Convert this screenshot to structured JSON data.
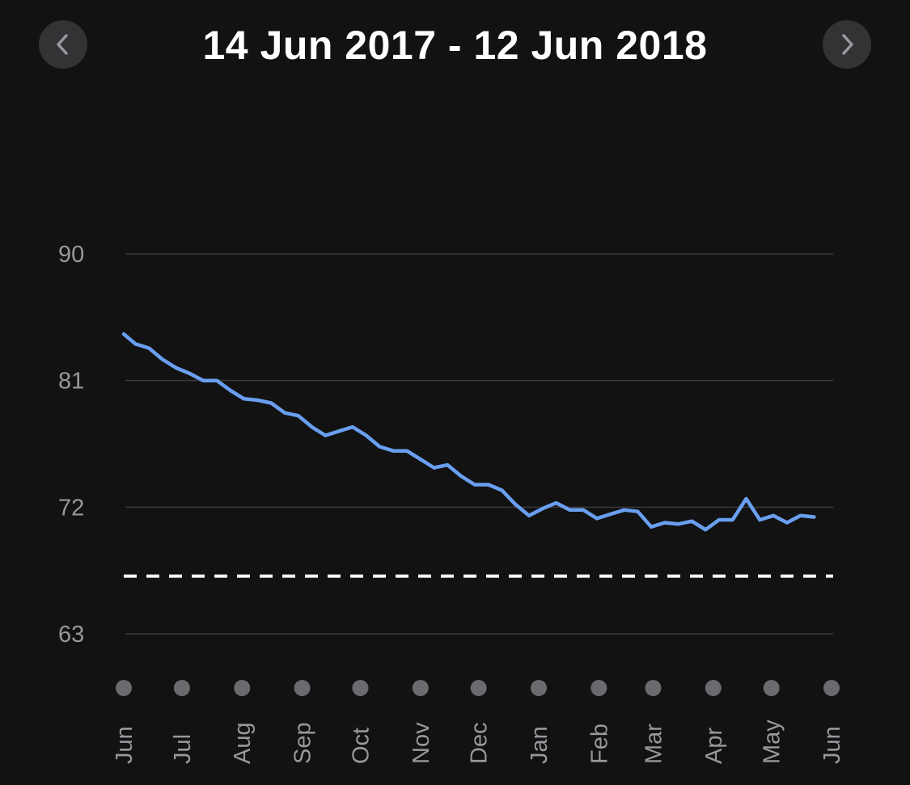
{
  "header": {
    "title": "14 Jun 2017 - 12 Jun 2018",
    "prev_icon": "chevron-left-icon",
    "next_icon": "chevron-right-icon"
  },
  "colors": {
    "background": "#121213",
    "line": "#6a9ff0",
    "goal_line": "#ffffff",
    "grid": "#3a3a3c",
    "dot": "#6b6b6f",
    "tick_text": "#98989d",
    "button": "#333336"
  },
  "chart_data": {
    "type": "line",
    "title": "14 Jun 2017 - 12 Jun 2018",
    "xlabel": "",
    "ylabel": "",
    "ylim": [
      63,
      90
    ],
    "y_ticks": [
      90,
      81,
      72,
      63
    ],
    "x_tick_labels": [
      "Jun",
      "Jul",
      "Aug",
      "Sep",
      "Oct",
      "Nov",
      "Dec",
      "Jan",
      "Feb",
      "Mar",
      "Apr",
      "May",
      "Jun"
    ],
    "x_tick_dates": [
      "2017-06-01",
      "2017-07-01",
      "2017-08-01",
      "2017-09-01",
      "2017-10-01",
      "2017-11-01",
      "2017-12-01",
      "2018-01-01",
      "2018-02-01",
      "2018-03-01",
      "2018-04-01",
      "2018-05-01",
      "2018-06-01"
    ],
    "grid": true,
    "goal_line": 67.1,
    "series": [
      {
        "points": [
          [
            "2017-06-01",
            84.3
          ],
          [
            "2017-06-07",
            83.6
          ],
          [
            "2017-06-14",
            83.3
          ],
          [
            "2017-06-21",
            82.5
          ],
          [
            "2017-06-28",
            81.9
          ],
          [
            "2017-07-05",
            81.5
          ],
          [
            "2017-07-12",
            81.0
          ],
          [
            "2017-07-19",
            81.0
          ],
          [
            "2017-07-26",
            80.3
          ],
          [
            "2017-08-02",
            79.7
          ],
          [
            "2017-08-09",
            79.6
          ],
          [
            "2017-08-16",
            79.4
          ],
          [
            "2017-08-23",
            78.7
          ],
          [
            "2017-08-30",
            78.5
          ],
          [
            "2017-09-06",
            77.7
          ],
          [
            "2017-09-13",
            77.1
          ],
          [
            "2017-09-20",
            77.4
          ],
          [
            "2017-09-27",
            77.7
          ],
          [
            "2017-10-04",
            77.1
          ],
          [
            "2017-10-11",
            76.3
          ],
          [
            "2017-10-18",
            76.0
          ],
          [
            "2017-10-25",
            76.0
          ],
          [
            "2017-11-01",
            75.4
          ],
          [
            "2017-11-08",
            74.8
          ],
          [
            "2017-11-15",
            75.0
          ],
          [
            "2017-11-22",
            74.2
          ],
          [
            "2017-11-29",
            73.6
          ],
          [
            "2017-12-06",
            73.6
          ],
          [
            "2017-12-13",
            73.2
          ],
          [
            "2017-12-20",
            72.2
          ],
          [
            "2017-12-27",
            71.4
          ],
          [
            "2018-01-03",
            71.9
          ],
          [
            "2018-01-10",
            72.3
          ],
          [
            "2018-01-17",
            71.8
          ],
          [
            "2018-01-24",
            71.8
          ],
          [
            "2018-01-31",
            71.2
          ],
          [
            "2018-02-07",
            71.5
          ],
          [
            "2018-02-14",
            71.8
          ],
          [
            "2018-02-21",
            71.7
          ],
          [
            "2018-02-28",
            70.6
          ],
          [
            "2018-03-07",
            70.9
          ],
          [
            "2018-03-14",
            70.8
          ],
          [
            "2018-03-21",
            71.0
          ],
          [
            "2018-03-28",
            70.4
          ],
          [
            "2018-04-04",
            71.1
          ],
          [
            "2018-04-11",
            71.1
          ],
          [
            "2018-04-18",
            72.6
          ],
          [
            "2018-04-25",
            71.1
          ],
          [
            "2018-05-02",
            71.4
          ],
          [
            "2018-05-09",
            70.9
          ],
          [
            "2018-05-16",
            71.4
          ],
          [
            "2018-05-23",
            71.3
          ]
        ]
      }
    ]
  }
}
